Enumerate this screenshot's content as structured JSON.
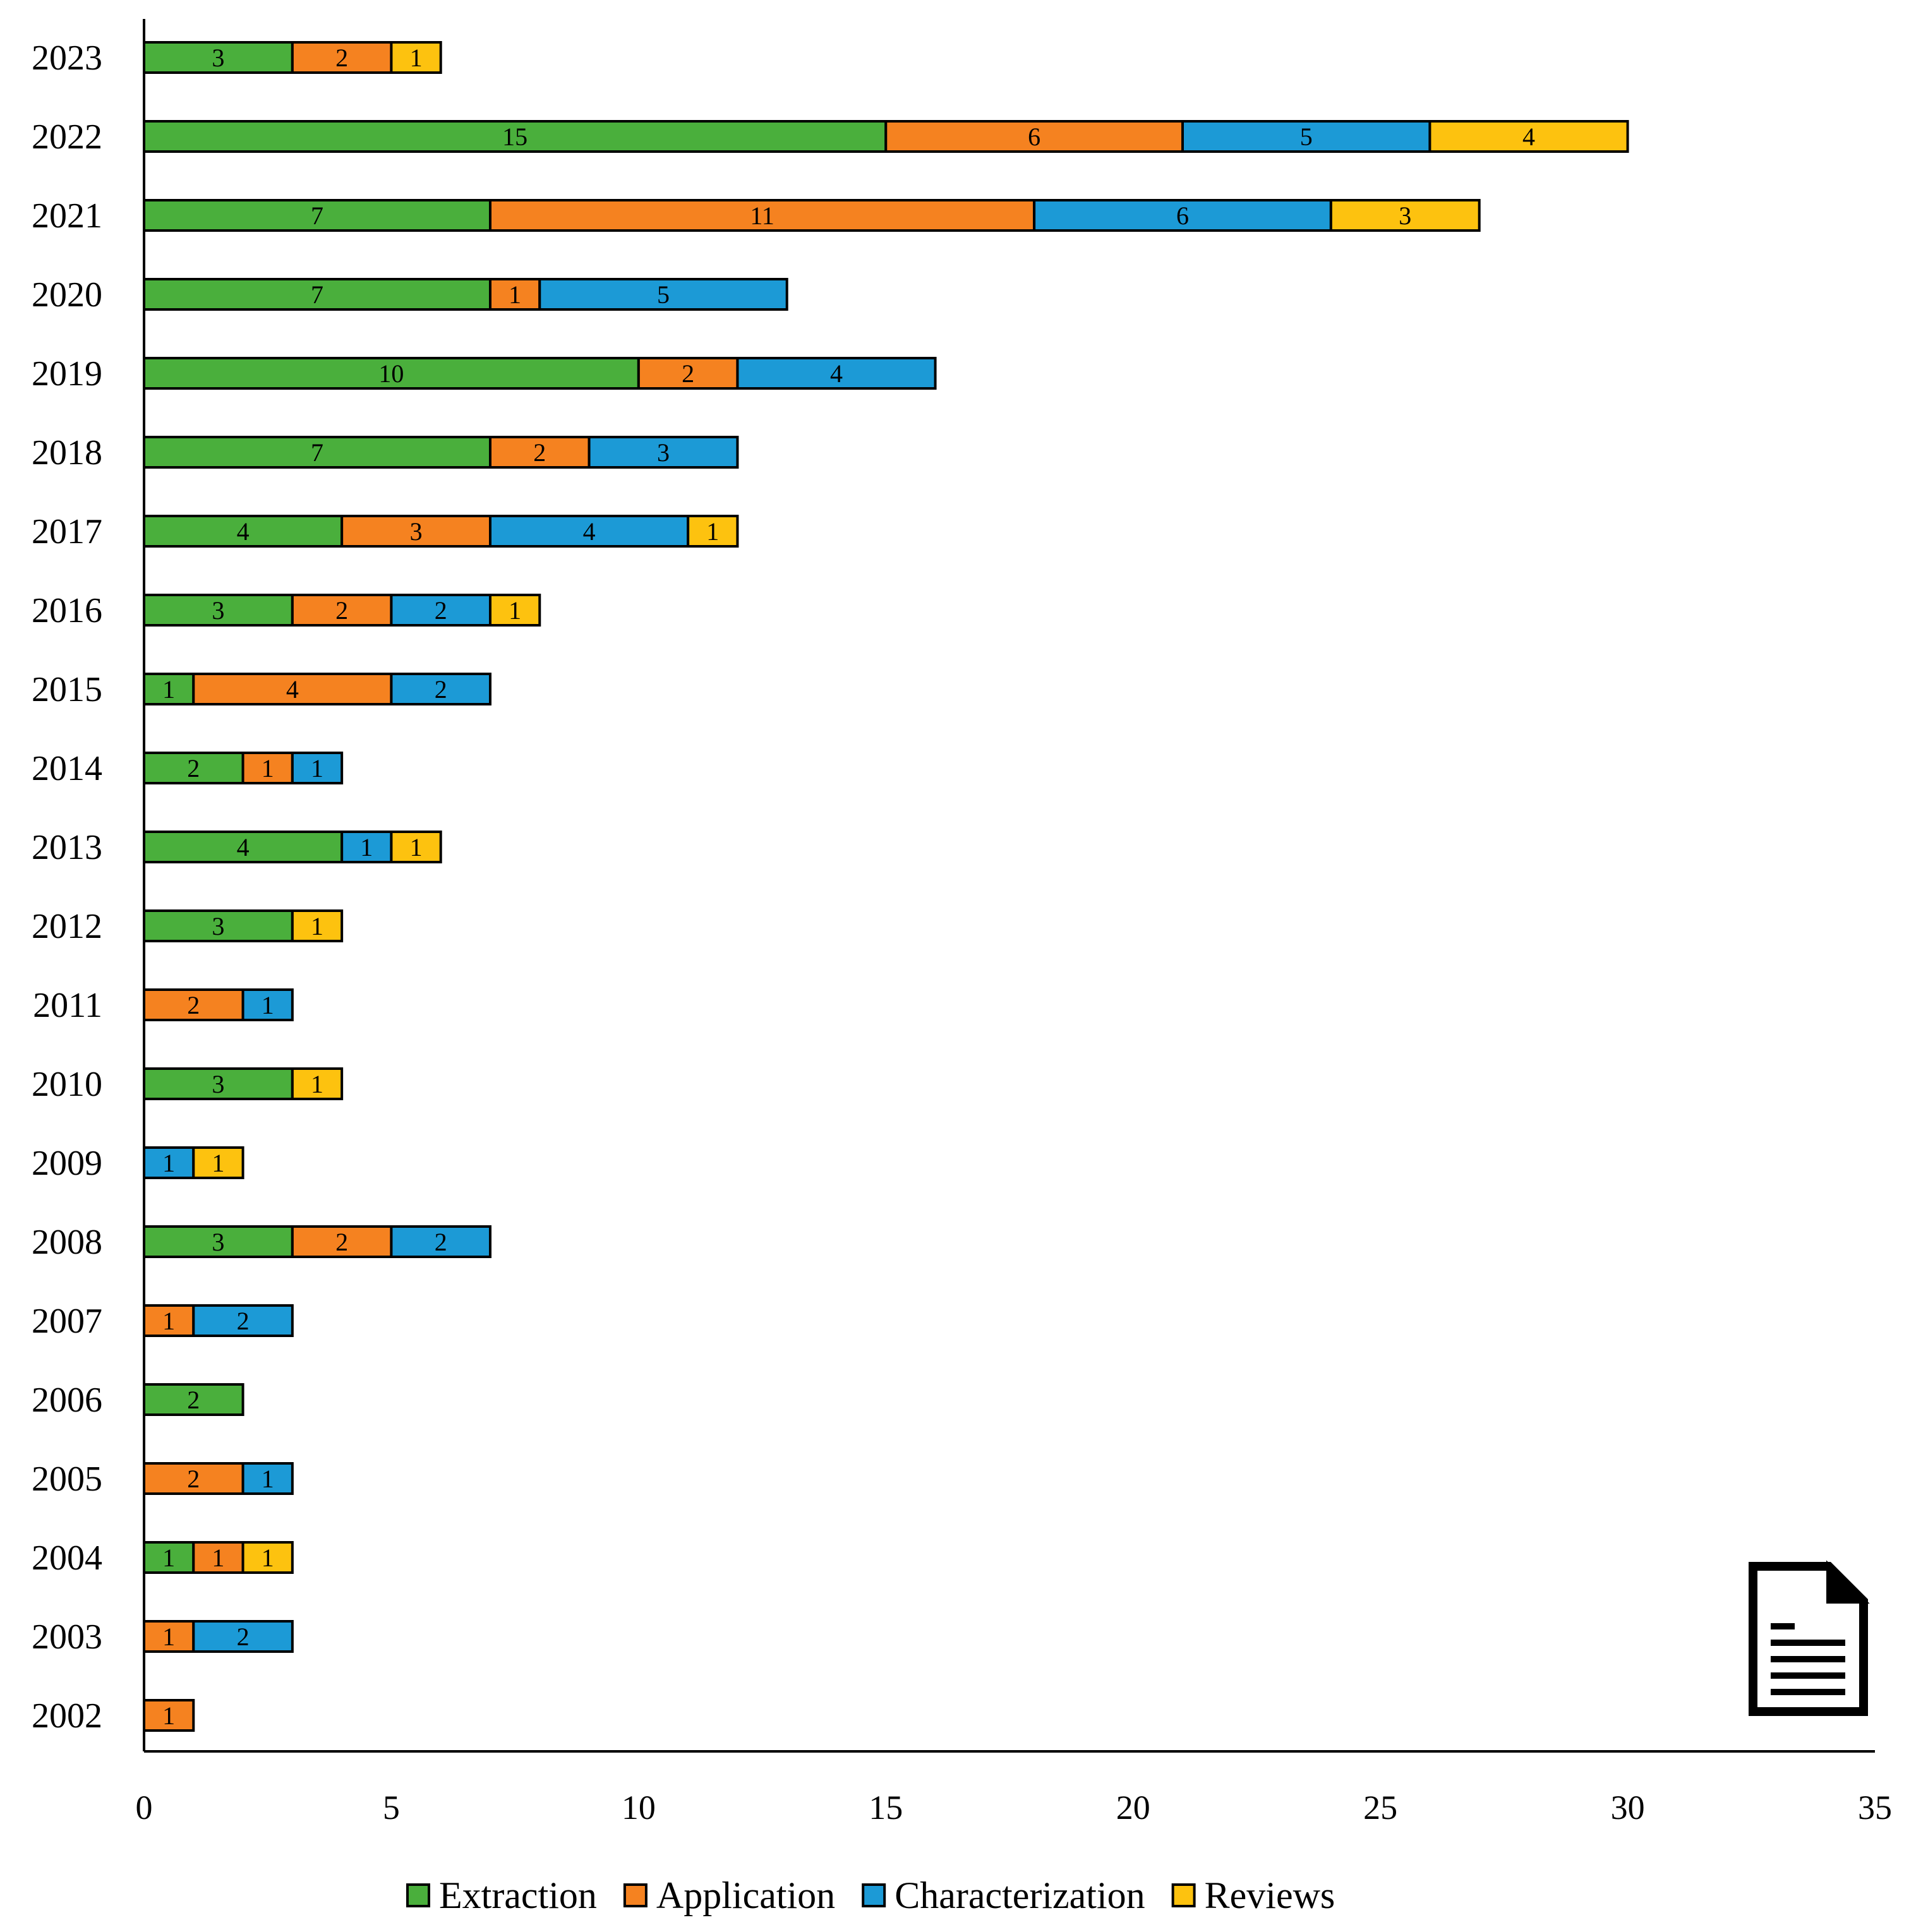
{
  "chart_data": {
    "type": "bar",
    "orientation": "horizontal",
    "stacked": true,
    "title": "",
    "xlabel": "",
    "ylabel": "",
    "xlim": [
      0,
      35
    ],
    "xticks": [
      0,
      5,
      10,
      15,
      20,
      25,
      30,
      35
    ],
    "grid": false,
    "legend_position": "bottom",
    "categories": [
      "2023",
      "2022",
      "2021",
      "2020",
      "2019",
      "2018",
      "2017",
      "2016",
      "2015",
      "2014",
      "2013",
      "2012",
      "2011",
      "2010",
      "2009",
      "2008",
      "2007",
      "2006",
      "2005",
      "2004",
      "2003",
      "2002"
    ],
    "series": [
      {
        "name": "Extraction",
        "color": "#4aaf3c",
        "values": [
          3,
          15,
          7,
          7,
          10,
          7,
          4,
          3,
          1,
          2,
          4,
          3,
          0,
          3,
          0,
          3,
          0,
          2,
          0,
          1,
          0,
          0
        ]
      },
      {
        "name": "Application",
        "color": "#f58220",
        "values": [
          2,
          6,
          11,
          1,
          2,
          2,
          3,
          2,
          4,
          1,
          0,
          0,
          2,
          0,
          0,
          2,
          1,
          0,
          2,
          1,
          1,
          1
        ]
      },
      {
        "name": "Characterization",
        "color": "#1c9ad6",
        "values": [
          0,
          5,
          6,
          5,
          4,
          3,
          4,
          2,
          2,
          1,
          1,
          0,
          1,
          0,
          1,
          2,
          2,
          0,
          1,
          0,
          2,
          0
        ]
      },
      {
        "name": "Reviews",
        "color": "#fdc20f",
        "values": [
          1,
          4,
          3,
          0,
          0,
          0,
          1,
          1,
          0,
          0,
          1,
          1,
          0,
          1,
          1,
          0,
          0,
          0,
          0,
          1,
          0,
          0
        ]
      }
    ]
  },
  "document_icon": "document-icon"
}
